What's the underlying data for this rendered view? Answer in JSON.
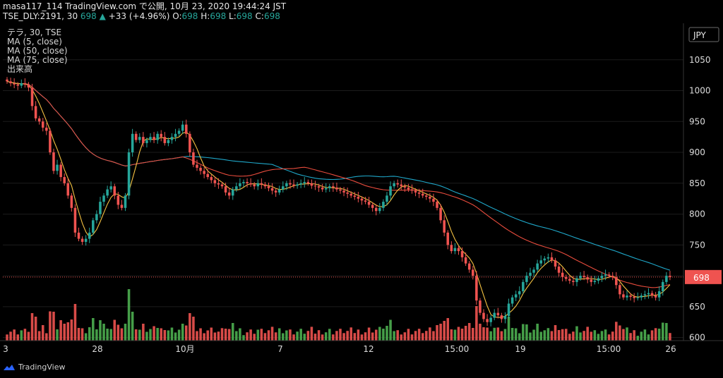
{
  "header": {
    "line1": "masa117_114 TradingView.com で公開, 10月 23, 2020 19:44:24 JST",
    "symbol": "TSE_DLY:2191, 30",
    "last": "698",
    "arrow": "▲",
    "change": "+33 (+4.96%)",
    "o_label": "O:",
    "o_val": "698",
    "h_label": "H:",
    "h_val": "698",
    "l_label": "L:",
    "l_val": "698",
    "c_label": "C:",
    "c_val": "698"
  },
  "legend": {
    "symbol": "テラ, 30, TSE",
    "ma5": "MA (5, close)",
    "ma50": "MA (50, close)",
    "ma75": "MA (75, close)",
    "volume": "出来高"
  },
  "currency": "JPY",
  "footer": {
    "brand": "TradingView"
  },
  "colors": {
    "up": "#26a69a",
    "down": "#ef5350",
    "ma5": "#f5c242",
    "ma50": "#e84c3d",
    "ma75": "#1fa7c9",
    "price_tag": "#ef5350",
    "volume_up": "#4caf50",
    "volume_down": "#ef5350"
  },
  "chart_data": {
    "type": "candlestick",
    "title": "テラ, 30, TSE",
    "ylabel": "JPY",
    "ylim": [
      595,
      1100
    ],
    "y_ticks": [
      600,
      650,
      700,
      750,
      800,
      850,
      900,
      950,
      1000,
      1050
    ],
    "last_price": 698,
    "x_tick_labels": [
      "3",
      "28",
      "10月",
      "7",
      "12",
      "15:00",
      "19",
      "15:00",
      "26"
    ],
    "close": [
      1015,
      1012,
      1010,
      1008,
      1012,
      1010,
      1005,
      975,
      955,
      950,
      940,
      935,
      900,
      870,
      880,
      860,
      850,
      830,
      810,
      770,
      760,
      755,
      760,
      770,
      790,
      800,
      820,
      830,
      840,
      845,
      830,
      815,
      810,
      830,
      900,
      930,
      920,
      925,
      915,
      920,
      925,
      920,
      930,
      925,
      915,
      920,
      925,
      930,
      935,
      945,
      930,
      900,
      880,
      875,
      870,
      865,
      860,
      855,
      850,
      848,
      845,
      835,
      830,
      840,
      845,
      850,
      852,
      850,
      848,
      845,
      850,
      848,
      845,
      842,
      838,
      835,
      840,
      845,
      850,
      848,
      846,
      848,
      850,
      852,
      850,
      846,
      845,
      843,
      840,
      842,
      845,
      843,
      840,
      838,
      835,
      833,
      830,
      828,
      825,
      822,
      820,
      815,
      810,
      805,
      810,
      820,
      830,
      845,
      850,
      848,
      845,
      843,
      840,
      838,
      835,
      833,
      830,
      828,
      825,
      820,
      810,
      790,
      770,
      750,
      740,
      745,
      740,
      730,
      720,
      710,
      700,
      660,
      640,
      630,
      625,
      632,
      640,
      636,
      630,
      635,
      655,
      665,
      670,
      675,
      690,
      700,
      705,
      710,
      720,
      725,
      728,
      730,
      725,
      715,
      705,
      698,
      695,
      692,
      690,
      696,
      700,
      698,
      694,
      690,
      692,
      696,
      700,
      702,
      700,
      698,
      685,
      670,
      665,
      668,
      666,
      664,
      665,
      668,
      670,
      672,
      668,
      665,
      675,
      690,
      700,
      698
    ]
  }
}
